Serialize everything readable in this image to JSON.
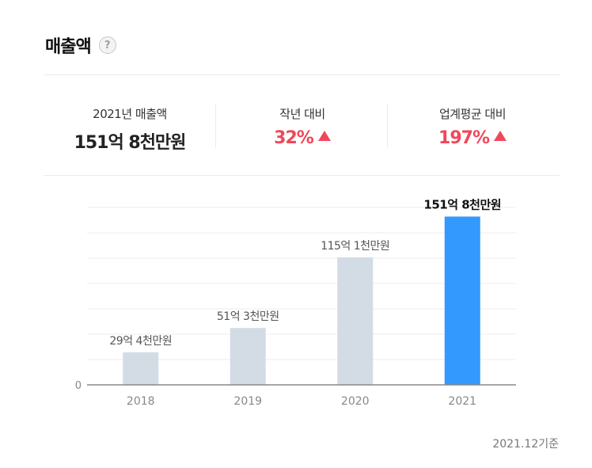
{
  "header": {
    "title": "매출액",
    "help_symbol": "?"
  },
  "summary": {
    "revenue_label": "2021년 매출액",
    "revenue_value": "151억 8천만원",
    "yoy_label": "작년 대비",
    "yoy_value": "32%",
    "industry_label": "업계평균 대비",
    "industry_value": "197%"
  },
  "colors": {
    "accent": "#3399ff",
    "bar": "#d3dce5",
    "up": "#f0475a"
  },
  "chart_data": {
    "type": "bar",
    "categories": [
      "2018",
      "2019",
      "2020",
      "2021"
    ],
    "values": [
      29.4,
      51.3,
      115.1,
      151.8
    ],
    "data_labels": [
      "29억 4천만원",
      "51억 3천만원",
      "115억 1천만원",
      "151억 8천만원"
    ],
    "highlight_index": 3,
    "y_tick_labels": [
      "0"
    ],
    "ylim": [
      0,
      160
    ],
    "grid": true
  },
  "footer": {
    "basis": "2021.12기준"
  }
}
